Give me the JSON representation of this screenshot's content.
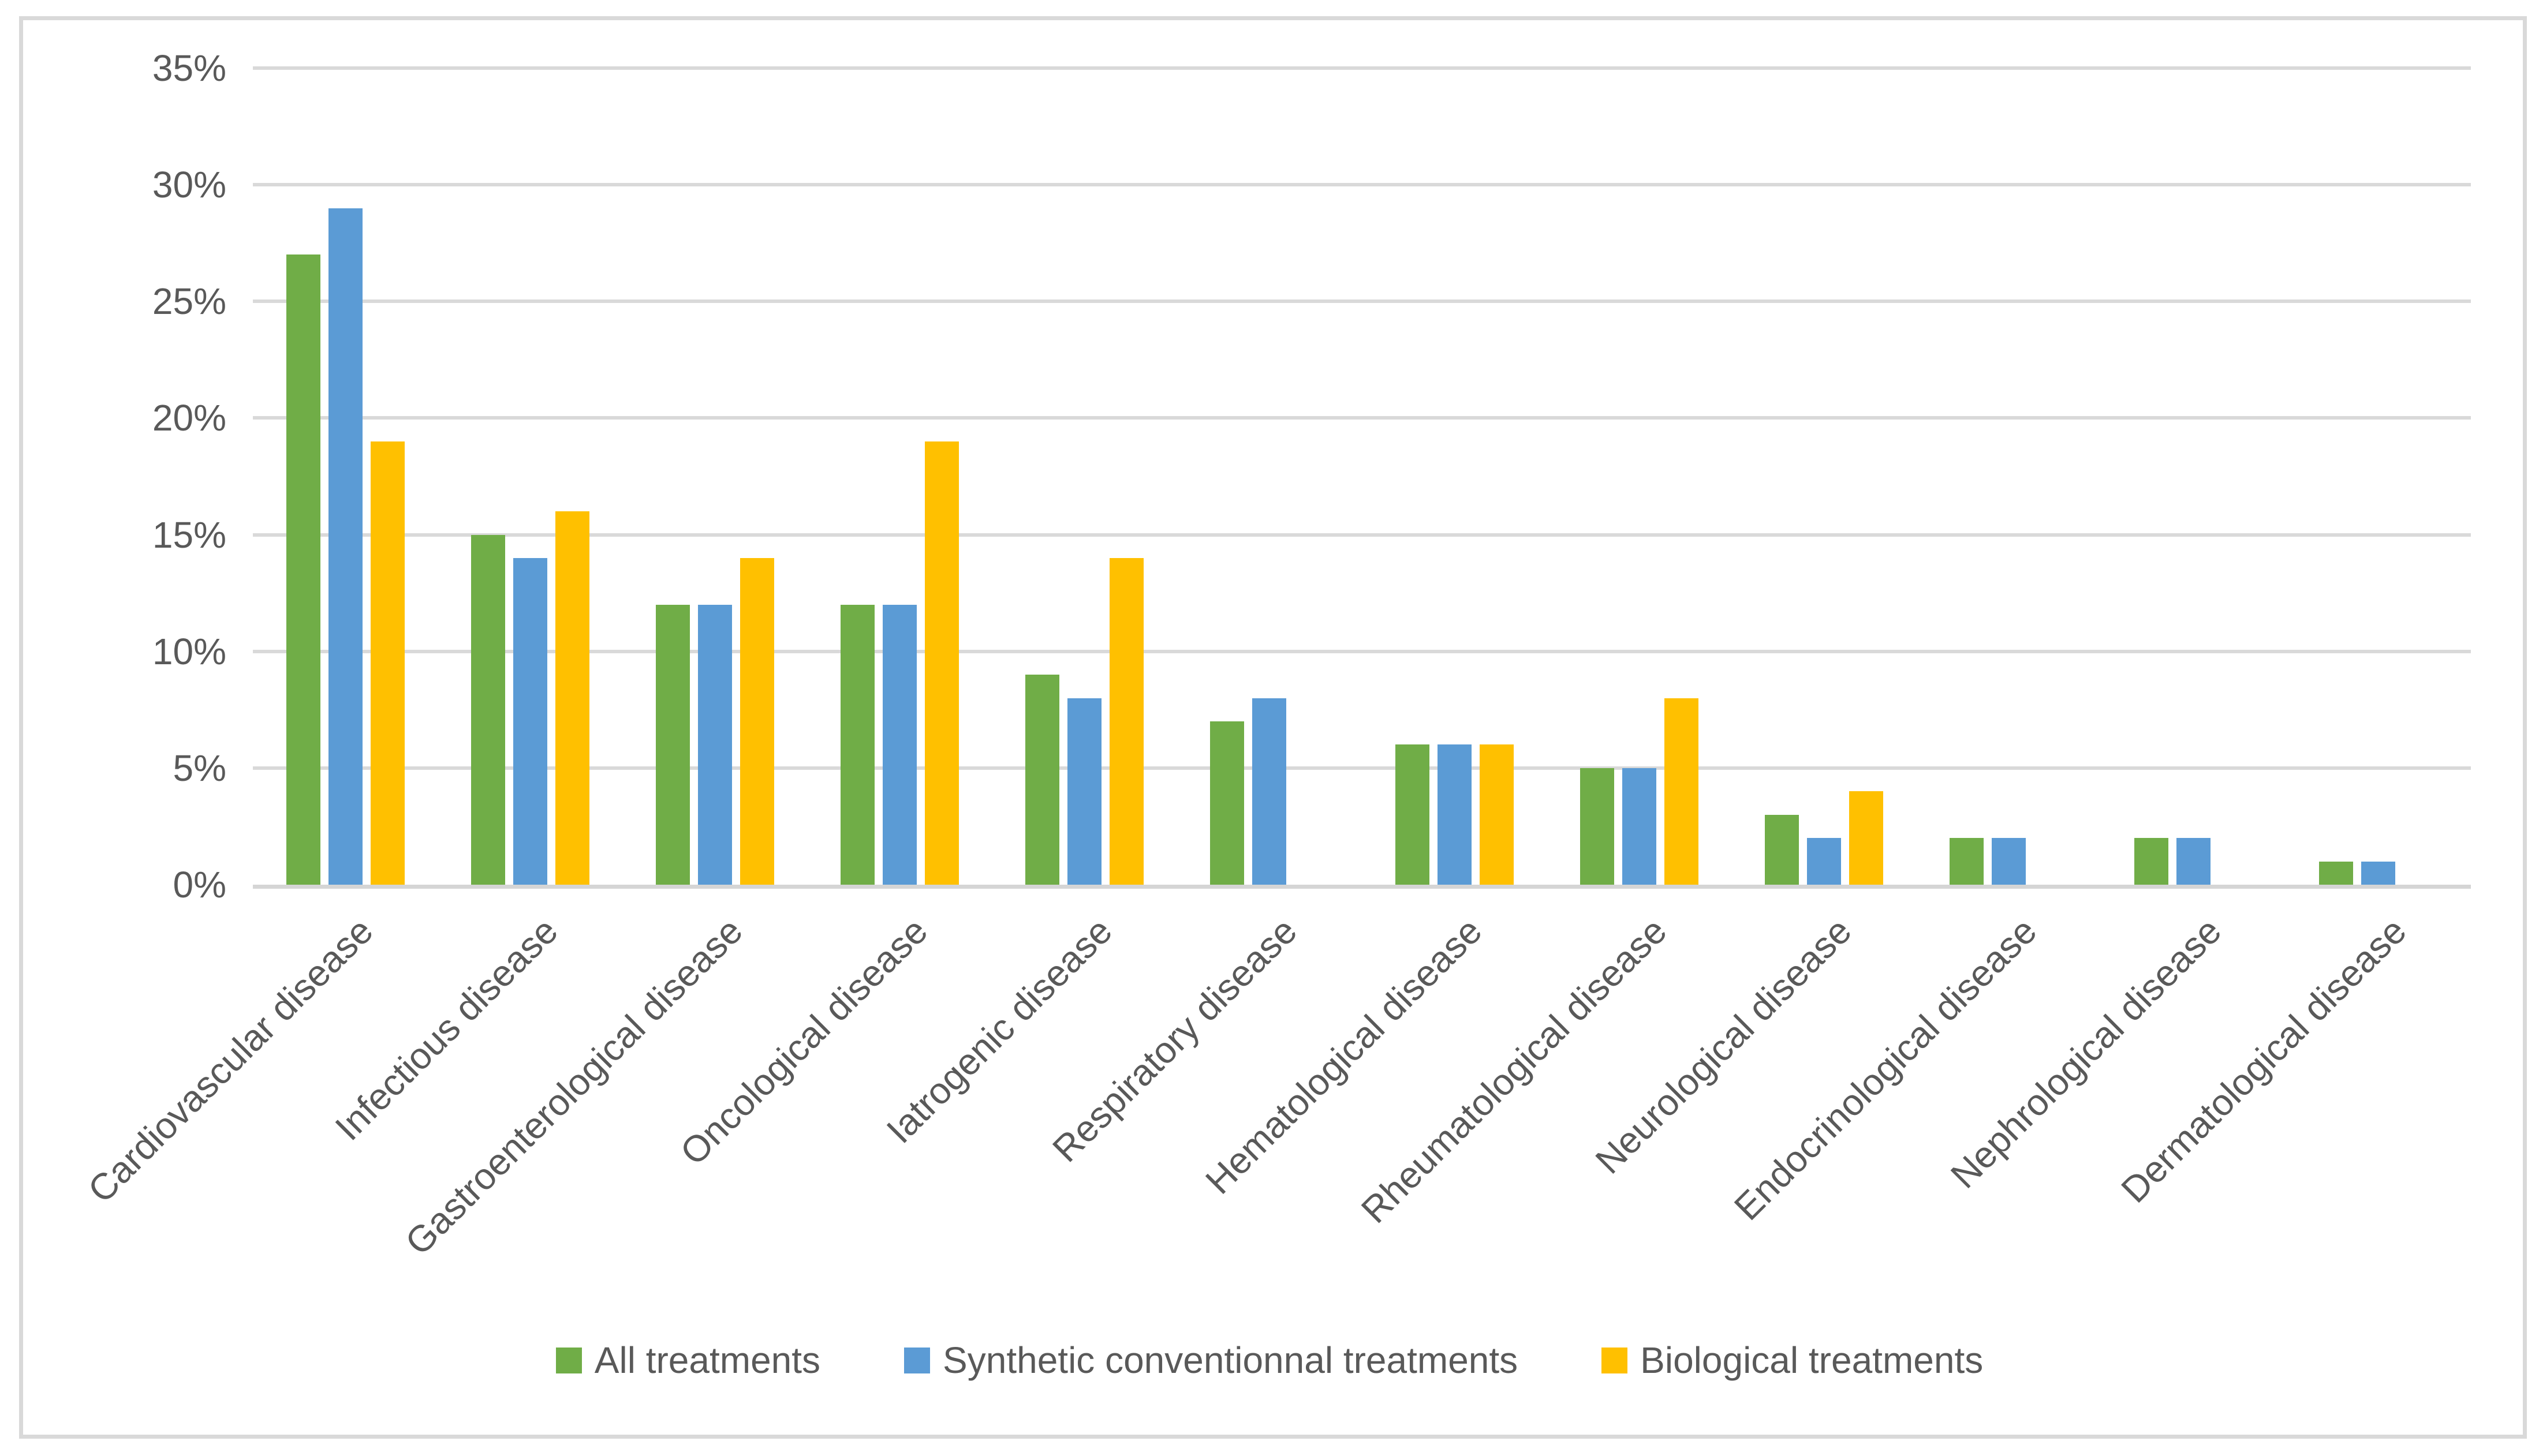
{
  "figure": {
    "background_color": "#ffffff",
    "border_color": "#d9d9d9",
    "gridline_color": "#d9d9d9",
    "axis_line_color": "#d5d5d5",
    "text_color": "#595959"
  },
  "chart_data": {
    "type": "bar",
    "title": "",
    "xlabel": "",
    "ylabel": "",
    "categories": [
      "Cardiovascular disease",
      "Infectious disease",
      "Gastroenterological disease",
      "Oncological disease",
      "Iatrogenic disease",
      "Respiratory disease",
      "Hematological disease",
      "Rheumatological disease",
      "Neurological disease",
      "Endocrinological disease",
      "Nephrological disease",
      "Dermatological disease"
    ],
    "series": [
      {
        "name": "All treatments",
        "color": "#70AD47",
        "values": [
          27,
          15,
          12,
          12,
          9,
          7,
          6,
          5,
          3,
          2,
          2,
          1
        ]
      },
      {
        "name": "Synthetic conventionnal treatments",
        "color": "#5B9BD5",
        "values": [
          29,
          14,
          12,
          12,
          8,
          8,
          6,
          5,
          2,
          2,
          2,
          1
        ]
      },
      {
        "name": "Biological treatments",
        "color": "#FFC000",
        "values": [
          19,
          16,
          14,
          19,
          14,
          null,
          6,
          8,
          4,
          null,
          null,
          null
        ]
      }
    ],
    "ylim": [
      0,
      35
    ],
    "ytick_step": 5,
    "ytick_labels": [
      "0%",
      "5%",
      "10%",
      "15%",
      "20%",
      "25%",
      "30%",
      "35%"
    ],
    "value_unit": "%",
    "grid": true,
    "legend_position": "bottom"
  }
}
